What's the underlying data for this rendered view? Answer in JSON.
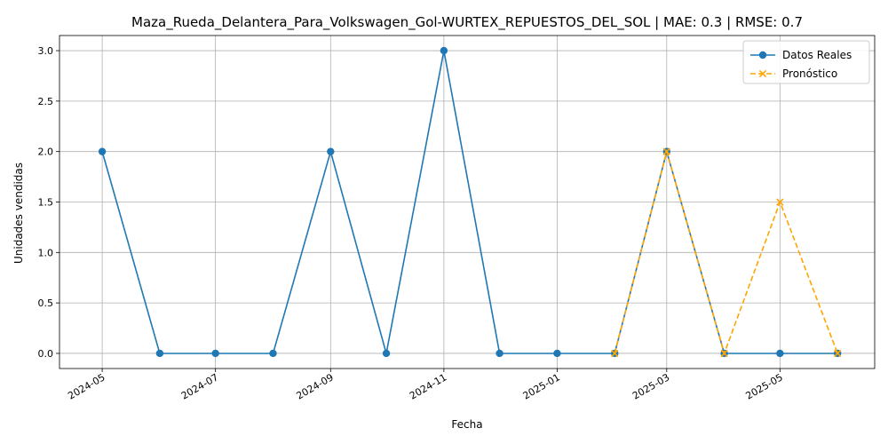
{
  "chart_data": {
    "type": "line",
    "title": "Maza_Rueda_Delantera_Para_Volkswagen_Gol-WURTEX_REPUESTOS_DEL_SOL | MAE: 0.3 | RMSE: 0.7",
    "xlabel": "Fecha",
    "ylabel": "Unidades vendidas",
    "xlim": [
      "2024-04-08",
      "2025-06-21"
    ],
    "ylim": [
      -0.15,
      3.15
    ],
    "x_ticks": [
      "2024-05",
      "2024-07",
      "2024-09",
      "2024-11",
      "2025-01",
      "2025-03",
      "2025-05"
    ],
    "y_ticks": [
      "0.0",
      "0.5",
      "1.0",
      "1.5",
      "2.0",
      "2.5",
      "3.0"
    ],
    "grid": true,
    "legend_position": "top-right",
    "series": [
      {
        "name": "Datos Reales",
        "color": "#1f77b4",
        "line_style": "solid",
        "marker": "circle",
        "x": [
          "2024-05-01",
          "2024-06-01",
          "2024-07-01",
          "2024-08-01",
          "2024-09-01",
          "2024-10-01",
          "2024-11-01",
          "2024-12-01",
          "2025-01-01",
          "2025-02-01",
          "2025-03-01",
          "2025-04-01",
          "2025-05-01",
          "2025-06-01"
        ],
        "values": [
          2,
          0,
          0,
          0,
          2,
          0,
          3,
          0,
          0,
          0,
          2,
          0,
          0,
          0
        ]
      },
      {
        "name": "Pronóstico",
        "color": "#ffa500",
        "line_style": "dashed",
        "marker": "x",
        "x": [
          "2025-02-01",
          "2025-03-01",
          "2025-04-01",
          "2025-05-01",
          "2025-06-01"
        ],
        "values": [
          0,
          2,
          0,
          1.5,
          0
        ]
      }
    ]
  }
}
